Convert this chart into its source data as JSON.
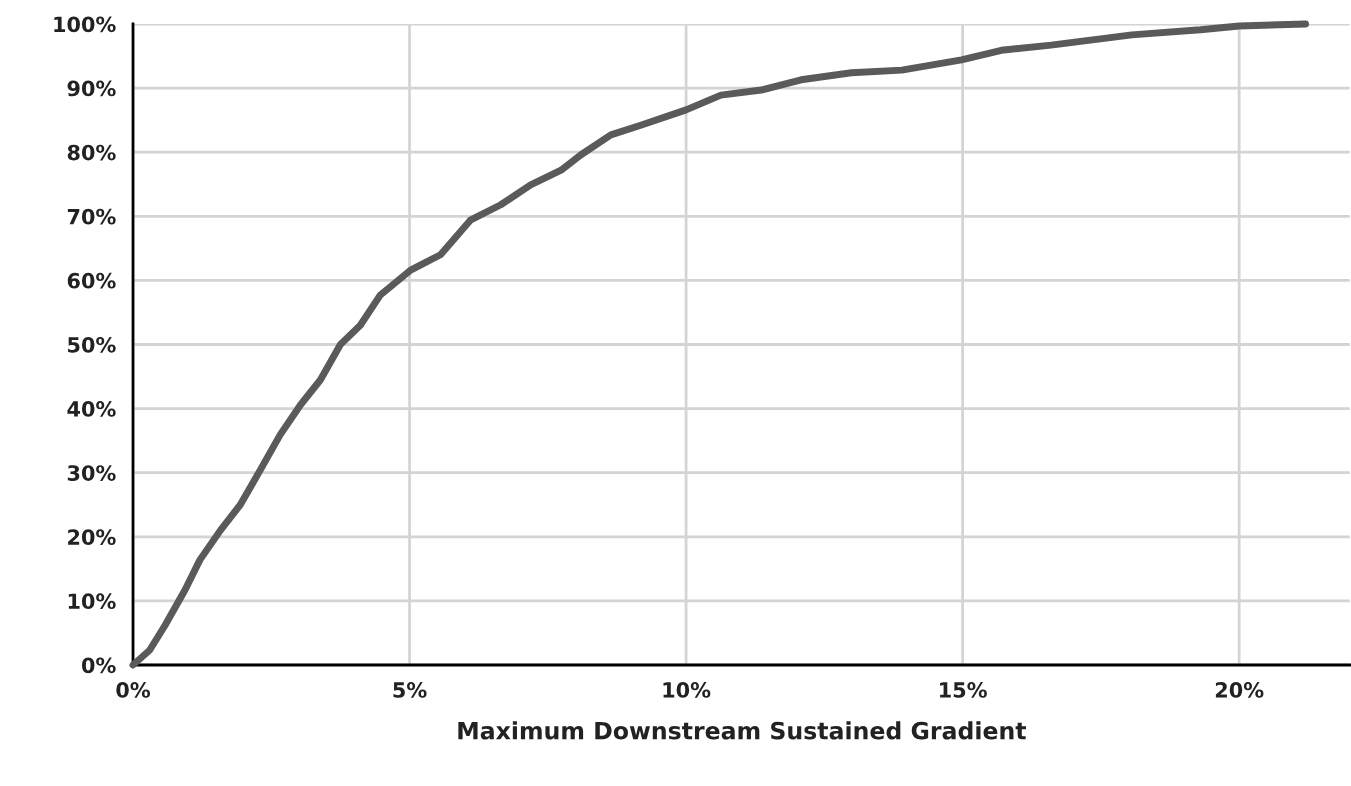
{
  "chart_data": {
    "type": "line",
    "xlabel": "Maximum Downstream Sustained Gradient",
    "x": [
      0,
      0.3,
      0.58,
      0.94,
      1.21,
      1.58,
      1.94,
      2.3,
      2.66,
      3.03,
      3.39,
      3.75,
      4.11,
      4.47,
      5.02,
      5.56,
      6.1,
      6.65,
      7.19,
      7.74,
      8.1,
      8.64,
      9.18,
      10,
      10.63,
      11.36,
      12.08,
      12.99,
      13.9,
      14.98,
      15.7,
      16.6,
      18.06,
      19.3,
      20,
      21.2
    ],
    "series": [
      {
        "color": "#5a5a5a",
        "values": [
          0,
          2.3,
          6.2,
          11.7,
          16.4,
          21,
          25,
          30.4,
          35.9,
          40.6,
          44.5,
          50,
          53,
          57.7,
          61.6,
          64,
          69.4,
          71.8,
          74.9,
          77.2,
          79.6,
          82.7,
          84.2,
          86.6,
          88.9,
          89.7,
          91.3,
          92.4,
          92.8,
          94.4,
          95.9,
          96.7,
          98.3,
          99.1,
          99.7,
          100
        ]
      }
    ],
    "xlim": [
      0,
      22
    ],
    "ylim": [
      0,
      100
    ],
    "xticks": [
      {
        "value": 0,
        "label": "0%"
      },
      {
        "value": 5,
        "label": "5%"
      },
      {
        "value": 10,
        "label": "10%"
      },
      {
        "value": 15,
        "label": "15%"
      },
      {
        "value": 20,
        "label": "20%"
      }
    ],
    "yticks": [
      {
        "value": 0,
        "label": "0%"
      },
      {
        "value": 10,
        "label": "10%"
      },
      {
        "value": 20,
        "label": "20%"
      },
      {
        "value": 30,
        "label": "30%"
      },
      {
        "value": 40,
        "label": "40%"
      },
      {
        "value": 50,
        "label": "50%"
      },
      {
        "value": 60,
        "label": "60%"
      },
      {
        "value": 70,
        "label": "70%"
      },
      {
        "value": 80,
        "label": "80%"
      },
      {
        "value": 90,
        "label": "90%"
      },
      {
        "value": 100,
        "label": "100%"
      }
    ],
    "grid": true,
    "marker": "none",
    "line_style": "solid"
  }
}
